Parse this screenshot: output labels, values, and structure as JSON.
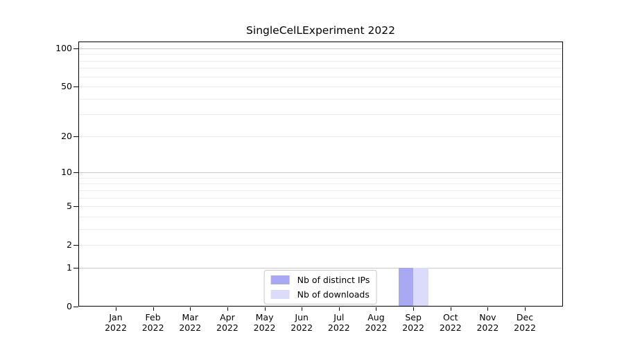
{
  "chart_data": {
    "type": "bar",
    "title": "SingleCelLExperiment 2022",
    "categories": [
      "Jan",
      "Feb",
      "Mar",
      "Apr",
      "May",
      "Jun",
      "Jul",
      "Aug",
      "Sep",
      "Oct",
      "Nov",
      "Dec"
    ],
    "category_year": "2022",
    "series": [
      {
        "name": "Nb of distinct IPs",
        "color": "#a8a8f3",
        "values": [
          0,
          0,
          0,
          0,
          0,
          0,
          0,
          0,
          1,
          0,
          0,
          0
        ]
      },
      {
        "name": "Nb of downloads",
        "color": "#dbdbfa",
        "values": [
          0,
          0,
          0,
          0,
          0,
          0,
          0,
          0,
          1,
          0,
          0,
          0
        ]
      }
    ],
    "yscale": "log1p",
    "ylim": [
      0,
      113
    ],
    "yticks": [
      0,
      1,
      2,
      5,
      10,
      20,
      50,
      100
    ],
    "major_gridlines": [
      1,
      10,
      100
    ],
    "minor_gridlines": [
      2,
      3,
      4,
      5,
      6,
      7,
      8,
      9,
      20,
      30,
      40,
      50,
      60,
      70,
      80,
      90
    ],
    "legend_position": "lower center",
    "grid_major_color": "#c9c9c9",
    "grid_minor_color": "#ededed",
    "spine_color": "#000000",
    "tick_color": "#000000",
    "background_color": "#ffffff"
  }
}
